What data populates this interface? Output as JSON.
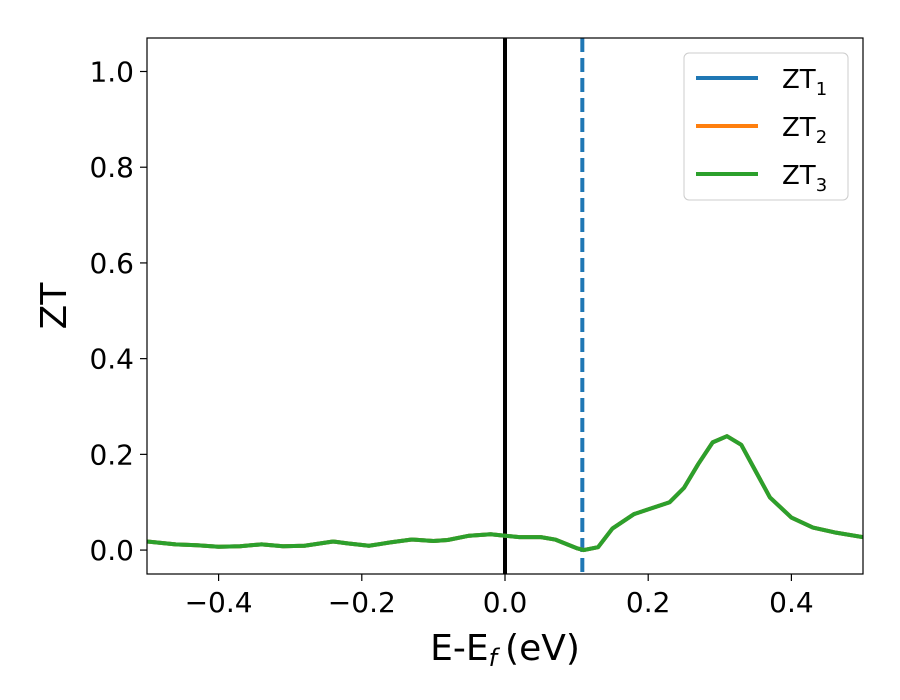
{
  "chart_data": {
    "type": "line",
    "xlabel": "E-E",
    "xlabel_sub": "f",
    "xlabel_unit": "(eV)",
    "ylabel": "ZT",
    "xlim": [
      -0.5,
      0.5
    ],
    "ylim": [
      -0.05,
      1.07
    ],
    "xticks": [
      -0.4,
      -0.2,
      0.0,
      0.2,
      0.4
    ],
    "xtick_labels": [
      "−0.4",
      "−0.2",
      "0.0",
      "0.2",
      "0.4"
    ],
    "yticks": [
      0.0,
      0.2,
      0.4,
      0.6,
      0.8,
      1.0
    ],
    "ytick_labels": [
      "0.0",
      "0.2",
      "0.4",
      "0.6",
      "0.8",
      "1.0"
    ],
    "grid": false,
    "legend_position": "top-right",
    "vlines": [
      {
        "x": 0.0,
        "style": "solid",
        "color": "#000000"
      },
      {
        "x": 0.108,
        "style": "dashed",
        "color": "#1f77b4"
      }
    ],
    "x": [
      -0.5,
      -0.46,
      -0.43,
      -0.4,
      -0.37,
      -0.34,
      -0.31,
      -0.28,
      -0.24,
      -0.22,
      -0.19,
      -0.16,
      -0.13,
      -0.1,
      -0.08,
      -0.05,
      -0.02,
      0.0,
      0.02,
      0.05,
      0.07,
      0.09,
      0.1,
      0.11,
      0.13,
      0.15,
      0.18,
      0.2,
      0.23,
      0.25,
      0.27,
      0.29,
      0.31,
      0.33,
      0.35,
      0.37,
      0.4,
      0.43,
      0.46,
      0.5
    ],
    "series": [
      {
        "name": "ZT",
        "sub": "1",
        "color": "#1f77b4",
        "values": [
          0.018,
          0.012,
          0.01,
          0.007,
          0.008,
          0.012,
          0.008,
          0.009,
          0.018,
          0.014,
          0.009,
          0.016,
          0.022,
          0.019,
          0.021,
          0.03,
          0.033,
          0.03,
          0.027,
          0.027,
          0.022,
          0.01,
          0.004,
          0.0,
          0.006,
          0.045,
          0.075,
          0.085,
          0.1,
          0.13,
          0.18,
          0.225,
          0.238,
          0.22,
          0.165,
          0.11,
          0.068,
          0.047,
          0.037,
          0.027
        ]
      },
      {
        "name": "ZT",
        "sub": "2",
        "color": "#ff7f0e",
        "values": [
          0.018,
          0.012,
          0.01,
          0.007,
          0.008,
          0.012,
          0.008,
          0.009,
          0.018,
          0.014,
          0.009,
          0.016,
          0.022,
          0.019,
          0.021,
          0.03,
          0.033,
          0.03,
          0.027,
          0.027,
          0.022,
          0.01,
          0.004,
          0.0,
          0.006,
          0.045,
          0.075,
          0.085,
          0.1,
          0.13,
          0.18,
          0.225,
          0.238,
          0.22,
          0.165,
          0.11,
          0.068,
          0.047,
          0.037,
          0.027
        ]
      },
      {
        "name": "ZT",
        "sub": "3",
        "color": "#2ca02c",
        "values": [
          0.018,
          0.012,
          0.01,
          0.007,
          0.008,
          0.012,
          0.008,
          0.009,
          0.018,
          0.014,
          0.009,
          0.016,
          0.022,
          0.019,
          0.021,
          0.03,
          0.033,
          0.03,
          0.027,
          0.027,
          0.022,
          0.01,
          0.004,
          0.0,
          0.006,
          0.045,
          0.075,
          0.085,
          0.1,
          0.13,
          0.18,
          0.225,
          0.238,
          0.22,
          0.165,
          0.11,
          0.068,
          0.047,
          0.037,
          0.027
        ]
      }
    ]
  }
}
